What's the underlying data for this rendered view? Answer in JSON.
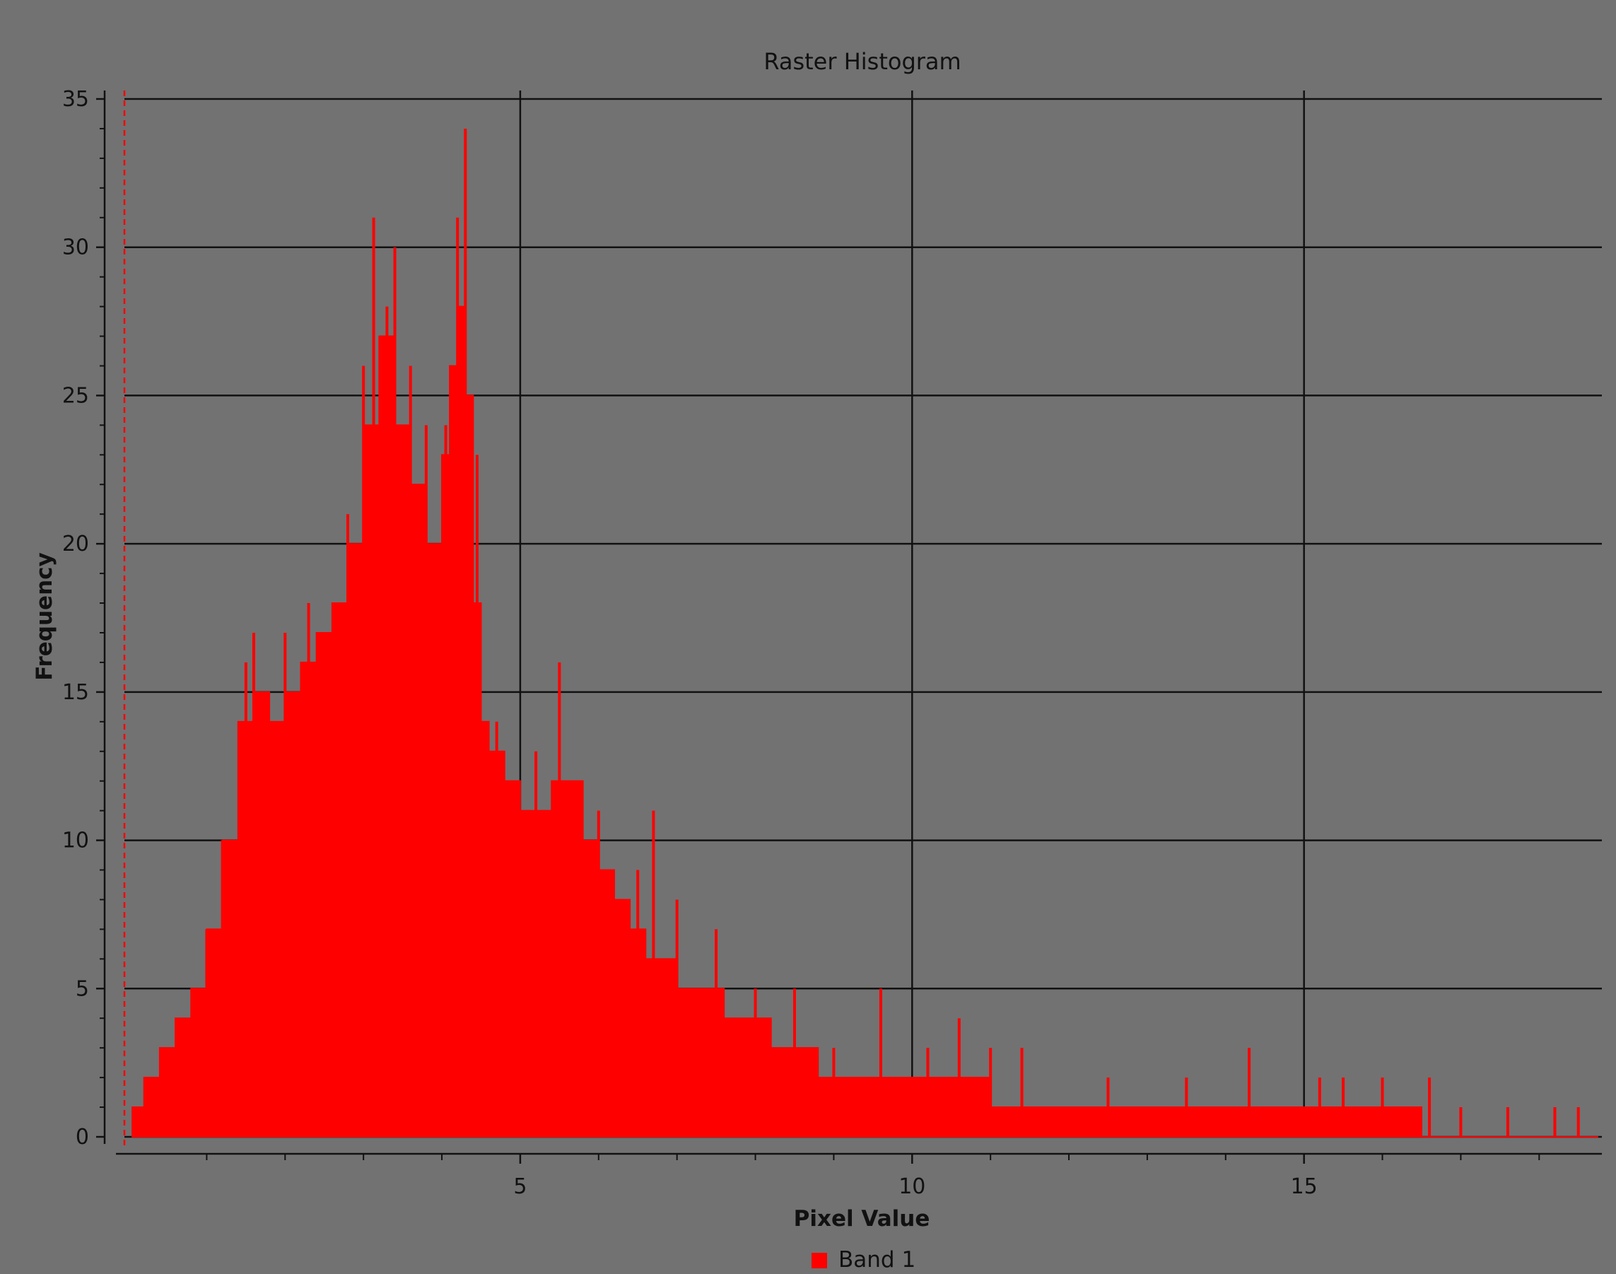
{
  "chart_data": {
    "type": "bar",
    "title": "Raster Histogram",
    "xlabel": "Pixel Value",
    "ylabel": "Frequency",
    "xlim": [
      -0.05,
      18.8
    ],
    "ylim": [
      0,
      35
    ],
    "x_ticks": [
      5,
      10,
      15
    ],
    "x_tick_labels": [
      "5",
      "10",
      "15"
    ],
    "y_ticks": [
      0,
      5,
      10,
      15,
      20,
      25,
      30,
      35
    ],
    "y_tick_labels": [
      "0",
      "5",
      "10",
      "15",
      "20",
      "25",
      "30",
      "35"
    ],
    "grid": true,
    "legend_position": "bottom-center",
    "series": [
      {
        "name": "Band 1",
        "color": "#ff0000",
        "envelope_x": [
          0.05,
          0.2,
          0.4,
          0.6,
          0.8,
          1.0,
          1.2,
          1.4,
          1.6,
          1.8,
          2.0,
          2.2,
          2.4,
          2.6,
          2.8,
          3.0,
          3.2,
          3.4,
          3.6,
          3.8,
          4.0,
          4.1,
          4.2,
          4.3,
          4.4,
          4.5,
          4.6,
          4.8,
          5.0,
          5.2,
          5.4,
          5.6,
          5.8,
          6.0,
          6.2,
          6.4,
          6.6,
          6.8,
          7.0,
          7.3,
          7.6,
          7.9,
          8.2,
          8.5,
          8.8,
          9.2,
          9.6,
          10.0,
          10.5,
          11.0,
          11.5,
          12.0,
          12.5,
          13.0,
          13.5,
          14.0,
          14.5,
          15.0,
          15.5,
          16.0,
          16.5,
          17.0,
          17.5,
          18.0,
          18.5,
          18.7
        ],
        "envelope_y": [
          1,
          2,
          3,
          4,
          5,
          7,
          10,
          14,
          15,
          14,
          15,
          16,
          17,
          18,
          20,
          24,
          27,
          24,
          22,
          20,
          23,
          26,
          28,
          25,
          18,
          14,
          13,
          12,
          11,
          11,
          12,
          12,
          10,
          9,
          8,
          7,
          6,
          6,
          5,
          5,
          4,
          4,
          3,
          3,
          2,
          2,
          2,
          2,
          2,
          1,
          1,
          1,
          1,
          1,
          1,
          1,
          1,
          1,
          1,
          1,
          0,
          0,
          0,
          0,
          0,
          0
        ],
        "spikes": [
          [
            1.0,
            7
          ],
          [
            1.2,
            10
          ],
          [
            1.5,
            16
          ],
          [
            1.6,
            17
          ],
          [
            2.0,
            17
          ],
          [
            2.3,
            18
          ],
          [
            2.5,
            17
          ],
          [
            2.8,
            21
          ],
          [
            3.0,
            26
          ],
          [
            3.13,
            31
          ],
          [
            3.3,
            28
          ],
          [
            3.4,
            30
          ],
          [
            3.6,
            26
          ],
          [
            3.8,
            24
          ],
          [
            4.05,
            24
          ],
          [
            4.2,
            31
          ],
          [
            4.3,
            34
          ],
          [
            4.45,
            23
          ],
          [
            4.7,
            14
          ],
          [
            5.2,
            13
          ],
          [
            5.5,
            16
          ],
          [
            5.7,
            12
          ],
          [
            6.0,
            11
          ],
          [
            6.5,
            9
          ],
          [
            6.7,
            11
          ],
          [
            7.0,
            8
          ],
          [
            7.5,
            7
          ],
          [
            8.0,
            5
          ],
          [
            8.5,
            5
          ],
          [
            9.0,
            3
          ],
          [
            9.6,
            5
          ],
          [
            10.2,
            3
          ],
          [
            10.6,
            4
          ],
          [
            11.0,
            3
          ],
          [
            11.4,
            3
          ],
          [
            12.5,
            2
          ],
          [
            13.5,
            2
          ],
          [
            14.3,
            3
          ],
          [
            15.2,
            2
          ],
          [
            15.5,
            2
          ],
          [
            16.0,
            2
          ],
          [
            16.6,
            2
          ],
          [
            17.0,
            1
          ],
          [
            17.6,
            1
          ],
          [
            18.2,
            1
          ],
          [
            18.5,
            1
          ]
        ]
      }
    ],
    "vline_x": -0.05
  }
}
